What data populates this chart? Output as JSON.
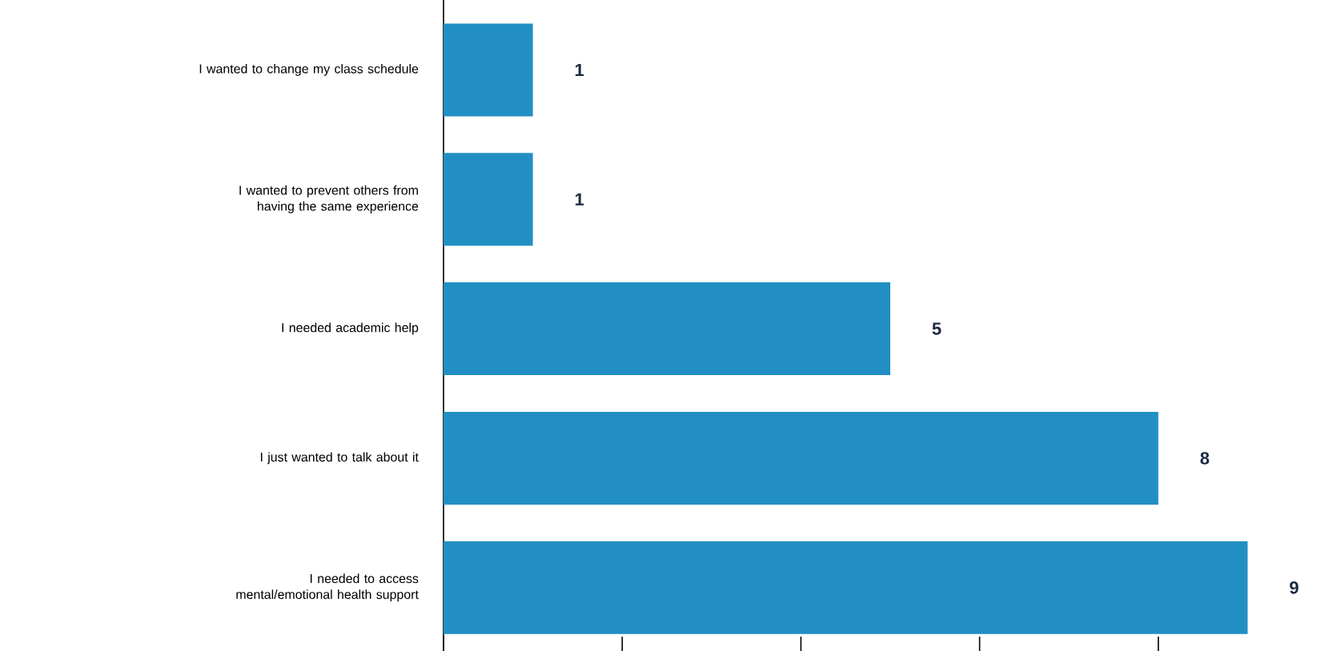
{
  "chart_data": {
    "type": "bar",
    "orientation": "horizontal",
    "categories": [
      "I wanted to change my class schedule",
      "I wanted to prevent others from having the same experience",
      "I needed academic help",
      "I just wanted to talk about it",
      "I needed to access mental/emotional health support"
    ],
    "values": [
      1,
      1,
      5,
      8,
      9
    ],
    "color": "#228fc4",
    "xticks": [
      {
        "value": 0,
        "label": null
      },
      {
        "value": 2,
        "label": null
      },
      {
        "value": 4,
        "label": null
      },
      {
        "value": 6,
        "label": null
      },
      {
        "value": 8,
        "label": null
      }
    ],
    "tick_labels": "y",
    "data_labels": true,
    "grid": false
  }
}
